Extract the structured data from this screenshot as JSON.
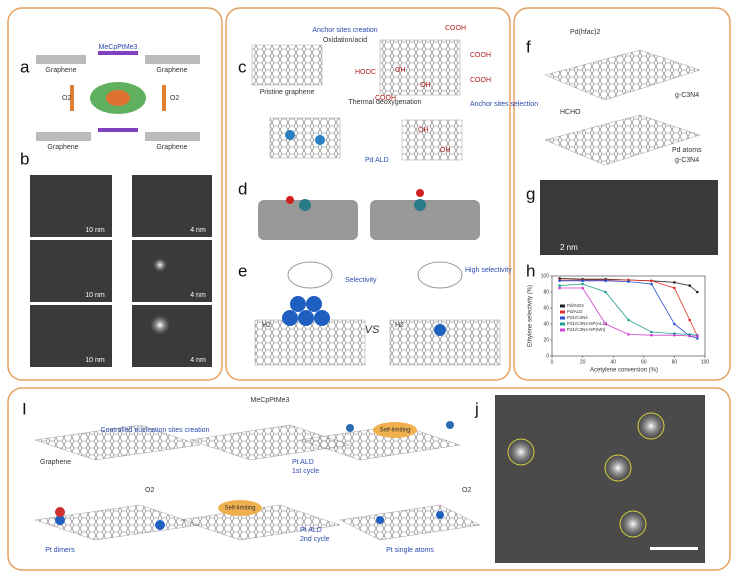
{
  "panel_labels": [
    "a",
    "b",
    "c",
    "d",
    "e",
    "f",
    "g",
    "h",
    "I",
    "j"
  ],
  "panel_a": {
    "precursor": "MeCpPtMe3",
    "substrate": [
      "Graphene",
      "Graphene",
      "Graphene",
      "Graphene"
    ],
    "oxidant": [
      "O2",
      "O2"
    ]
  },
  "panel_b": {
    "scale_bars": [
      "10 nm",
      "4 nm",
      "10 nm",
      "4 nm",
      "10 nm",
      "4 nm"
    ]
  },
  "panel_c": {
    "step1": "Anchor sites creation",
    "step1_sub": "Oxidation/acid",
    "start": "Pristine graphene",
    "step2": "Thermal deoxygenation",
    "step3": "Anchor sites selection",
    "step4": "Pd ALD",
    "groups": [
      "COOH",
      "COOH",
      "COOH",
      "HOOC",
      "OH",
      "OH",
      "COOH",
      "OH",
      "OH"
    ]
  },
  "panel_e": {
    "hydrogen": [
      "H2",
      "H2"
    ],
    "left_note": "Selectivity",
    "vs": "VS",
    "right_note": "High selectivity"
  },
  "panel_f": {
    "precursor": "Pd(hfac)2",
    "support": [
      "g-C3N4",
      "g-C3N4"
    ],
    "reagent": "HCHO",
    "product": "Pd atoms"
  },
  "panel_g": {
    "scale_bar": "2 nm"
  },
  "panel_h": {
    "x_label": "Acetylene conversion (%)",
    "y_label": "Ethylene selectivity (%)",
    "xlim": [
      0,
      100
    ],
    "ylim": [
      0,
      100
    ],
    "xticks": [
      0,
      20,
      40,
      60,
      80,
      100
    ],
    "yticks": [
      0,
      20,
      40,
      60,
      80,
      100
    ],
    "x": [
      5,
      20,
      35,
      50,
      65,
      80,
      90,
      95
    ],
    "series": [
      {
        "name": "Pd/SiO2",
        "color": "#222222",
        "values": [
          97,
          96,
          96,
          95,
          94,
          92,
          88,
          80
        ]
      },
      {
        "name": "Pd/ALD",
        "color": "#e0302a",
        "values": [
          95,
          95,
          95,
          95,
          94,
          85,
          45,
          25
        ]
      },
      {
        "name": "Pd1/C3N4",
        "color": "#2a50d0",
        "values": [
          94,
          94,
          94,
          93,
          90,
          40,
          25,
          22
        ]
      },
      {
        "name": "Pd1/C3N4-NP(ALD)",
        "color": "#20a090",
        "values": [
          88,
          90,
          80,
          45,
          30,
          28,
          27,
          26
        ]
      },
      {
        "name": "Pd1/C3N4-NP(IWI)",
        "color": "#d040d0",
        "values": [
          85,
          85,
          40,
          27,
          26,
          26,
          25,
          25
        ]
      }
    ]
  },
  "panel_I": {
    "precursor": "MeCpPtMe3",
    "step1": "Controlled nucleation sites creation",
    "substrate": "Graphene",
    "cycle1": [
      "Pt ALD",
      "1st cycle"
    ],
    "self_limiting": [
      "Self-limiting",
      "Self-limiting"
    ],
    "oxidant": [
      "O2",
      "O2"
    ],
    "cycle2": [
      "Pt ALD",
      "2nd cycle"
    ],
    "dimers": "Pt dimers",
    "single": "Pt single atoms"
  }
}
